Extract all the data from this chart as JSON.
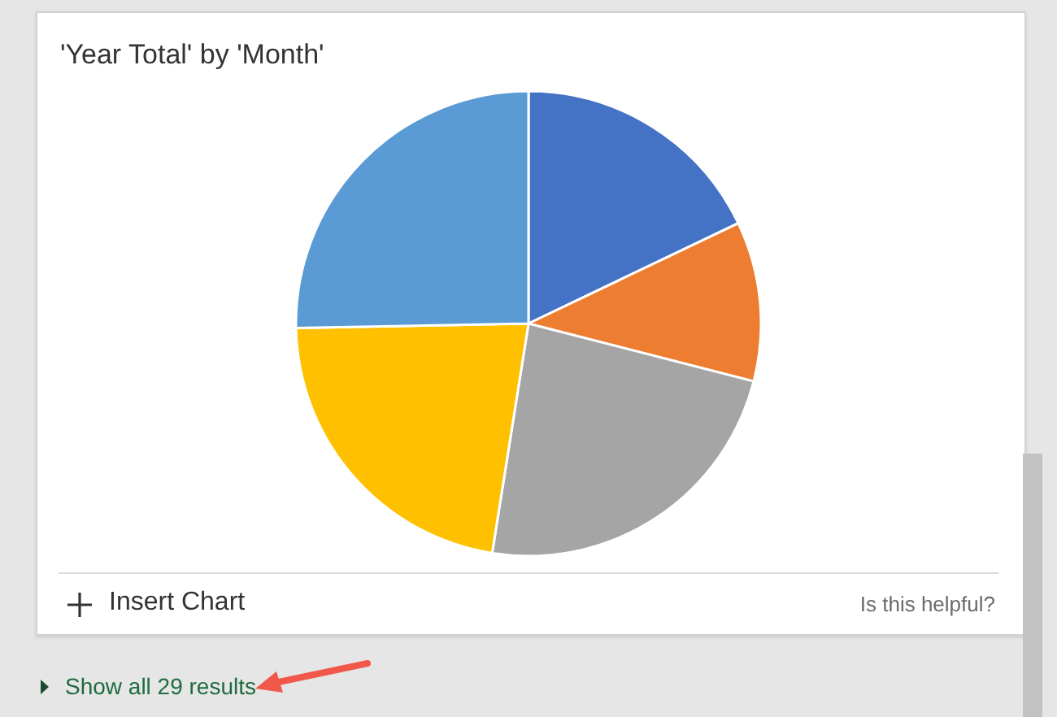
{
  "chart_data": {
    "type": "pie",
    "title": "'Year Total' by 'Month'",
    "categories": [
      null,
      null,
      null,
      null,
      null
    ],
    "values": [
      17.9,
      11.1,
      23.5,
      22.2,
      25.3
    ],
    "colors": [
      "#4472c4",
      "#ed7d31",
      "#a5a5a5",
      "#ffc000",
      "#5b9bd5"
    ],
    "annotations": [
      "Insert Chart",
      "Is this helpful?",
      "Show all 29 results"
    ]
  }
}
